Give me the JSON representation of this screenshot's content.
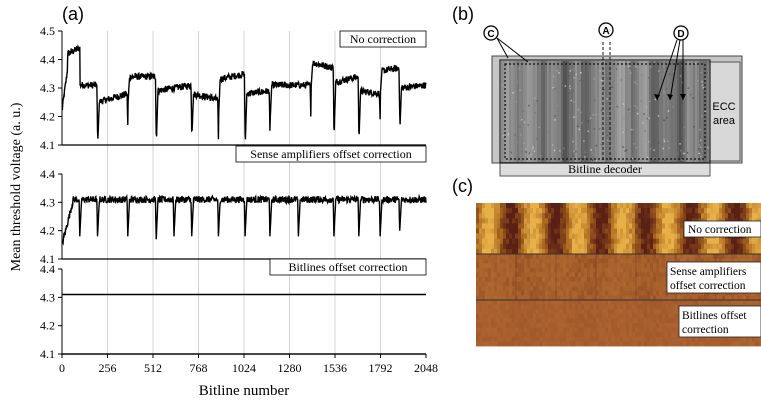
{
  "panel_labels": {
    "a": "(a)",
    "b": "(b)",
    "c": "(c)"
  },
  "chart_data": {
    "type": "line",
    "xlabel": "Bitline number",
    "ylabel": "Mean threshold voltage (a. u.)",
    "xlim": [
      0,
      2048
    ],
    "x_ticks": [
      "0",
      "256",
      "512",
      "768",
      "1024",
      "1280",
      "1536",
      "1792",
      "2048"
    ],
    "grid": "vertical",
    "subplots": [
      {
        "name": "No correction",
        "ylim": [
          4.1,
          4.5
        ],
        "y_ticks": [
          "4.1",
          "4.2",
          "4.3",
          "4.4",
          "4.5"
        ],
        "baseline": 4.3,
        "segments": [
          {
            "x0": 0,
            "x1": 30,
            "y0": 4.22,
            "y1": 4.36
          },
          {
            "x0": 30,
            "x1": 100,
            "y0": 4.42,
            "y1": 4.44
          },
          {
            "x0": 100,
            "x1": 200,
            "y0": 4.31,
            "y1": 4.31
          },
          {
            "x0": 200,
            "x1": 370,
            "y0": 4.25,
            "y1": 4.28
          },
          {
            "x0": 370,
            "x1": 530,
            "y0": 4.34,
            "y1": 4.34
          },
          {
            "x0": 530,
            "x1": 730,
            "y0": 4.29,
            "y1": 4.31
          },
          {
            "x0": 730,
            "x1": 880,
            "y0": 4.28,
            "y1": 4.26
          },
          {
            "x0": 880,
            "x1": 1030,
            "y0": 4.33,
            "y1": 4.35
          },
          {
            "x0": 1030,
            "x1": 1170,
            "y0": 4.28,
            "y1": 4.29
          },
          {
            "x0": 1170,
            "x1": 1400,
            "y0": 4.31,
            "y1": 4.31
          },
          {
            "x0": 1400,
            "x1": 1530,
            "y0": 4.39,
            "y1": 4.37
          },
          {
            "x0": 1530,
            "x1": 1670,
            "y0": 4.32,
            "y1": 4.34
          },
          {
            "x0": 1670,
            "x1": 1790,
            "y0": 4.29,
            "y1": 4.28
          },
          {
            "x0": 1790,
            "x1": 1900,
            "y0": 4.36,
            "y1": 4.37
          },
          {
            "x0": 1900,
            "x1": 2048,
            "y0": 4.3,
            "y1": 4.31
          }
        ],
        "dips": [
          {
            "x": 200,
            "y": 4.15
          },
          {
            "x": 370,
            "y": 4.17
          },
          {
            "x": 530,
            "y": 4.14
          },
          {
            "x": 730,
            "y": 4.15
          },
          {
            "x": 880,
            "y": 4.12
          },
          {
            "x": 1030,
            "y": 4.15
          },
          {
            "x": 1170,
            "y": 4.15
          },
          {
            "x": 1400,
            "y": 4.2
          },
          {
            "x": 1530,
            "y": 4.16
          },
          {
            "x": 1670,
            "y": 4.15
          },
          {
            "x": 1790,
            "y": 4.19
          },
          {
            "x": 1900,
            "y": 4.21
          }
        ],
        "noise": 0.012
      },
      {
        "name": "Sense amplifiers offset correction",
        "ylim": [
          4.1,
          4.4
        ],
        "y_ticks": [
          "4.1",
          "4.2",
          "4.3",
          "4.4"
        ],
        "baseline": 4.3,
        "segments": [
          {
            "x0": 0,
            "x1": 60,
            "y0": 4.15,
            "y1": 4.3
          },
          {
            "x0": 60,
            "x1": 2048,
            "y0": 4.31,
            "y1": 4.31
          }
        ],
        "dips": [
          {
            "x": 100,
            "y": 4.18
          },
          {
            "x": 200,
            "y": 4.18
          },
          {
            "x": 370,
            "y": 4.18
          },
          {
            "x": 530,
            "y": 4.17
          },
          {
            "x": 630,
            "y": 4.18
          },
          {
            "x": 730,
            "y": 4.18
          },
          {
            "x": 880,
            "y": 4.18
          },
          {
            "x": 1030,
            "y": 4.18
          },
          {
            "x": 1170,
            "y": 4.18
          },
          {
            "x": 1330,
            "y": 4.18
          },
          {
            "x": 1530,
            "y": 4.18
          },
          {
            "x": 1670,
            "y": 4.18
          },
          {
            "x": 1790,
            "y": 4.18
          },
          {
            "x": 1900,
            "y": 4.2
          }
        ],
        "noise": 0.012
      },
      {
        "name": "Bitlines offset correction",
        "ylim": [
          4.1,
          4.4
        ],
        "y_ticks": [
          "4.1",
          "4.2",
          "4.3",
          "4.4"
        ],
        "baseline": 4.31,
        "segments": [
          {
            "x0": 0,
            "x1": 2048,
            "y0": 4.31,
            "y1": 4.31
          }
        ],
        "dips": [],
        "noise": 0.0
      }
    ]
  },
  "panel_b": {
    "markers": [
      "C",
      "A",
      "D"
    ],
    "ecc_label_1": "ECC",
    "ecc_label_2": "area",
    "decoder_label": "Bitline decoder"
  },
  "panel_c": {
    "rows": [
      {
        "label_lines": [
          "No correction"
        ],
        "colors": [
          "#5a1f15",
          "#a8661e",
          "#e8b048"
        ]
      },
      {
        "label_lines": [
          "Sense amplifiers",
          "offset correction"
        ],
        "colors": [
          "#8f4a22",
          "#a8602c",
          "#b46c34"
        ]
      },
      {
        "label_lines": [
          "Bitlines offset",
          "correction"
        ],
        "colors": [
          "#9c5428",
          "#a85e2e",
          "#b06834"
        ]
      }
    ]
  }
}
